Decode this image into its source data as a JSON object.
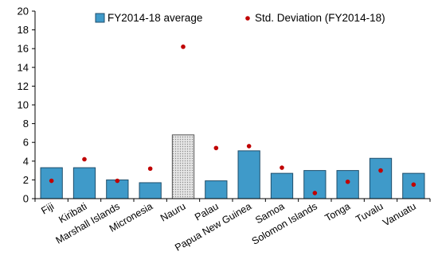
{
  "chart_data": {
    "type": "bar",
    "title": "",
    "xlabel": "",
    "ylabel": "",
    "ylim": [
      0,
      20
    ],
    "yticks": [
      0,
      2,
      4,
      6,
      8,
      10,
      12,
      14,
      16,
      18,
      20
    ],
    "grid": false,
    "legend_position": "top-right",
    "categories": [
      "Fiji",
      "Kiribati",
      "Marshall Islands",
      "Micronesia",
      "Nauru",
      "Palau",
      "Papua New Guinea",
      "Samoa",
      "Solomon Islands",
      "Tonga",
      "Tuvalu",
      "Vanuatu"
    ],
    "series": [
      {
        "name": "FY2014-18 average",
        "kind": "bar",
        "color": "#3f9ac9",
        "highlight_category": "Nauru",
        "highlight_color": "#d9d9d9",
        "values": [
          3.3,
          3.3,
          2.0,
          1.7,
          6.8,
          1.9,
          5.1,
          2.7,
          3.0,
          3.0,
          4.3,
          2.7
        ]
      },
      {
        "name": "Std. Deviation (FY2014-18)",
        "kind": "point",
        "color": "#c00000",
        "values": [
          1.9,
          4.2,
          1.9,
          3.2,
          16.2,
          5.4,
          5.6,
          3.3,
          0.6,
          1.8,
          3.0,
          1.5
        ]
      }
    ]
  }
}
